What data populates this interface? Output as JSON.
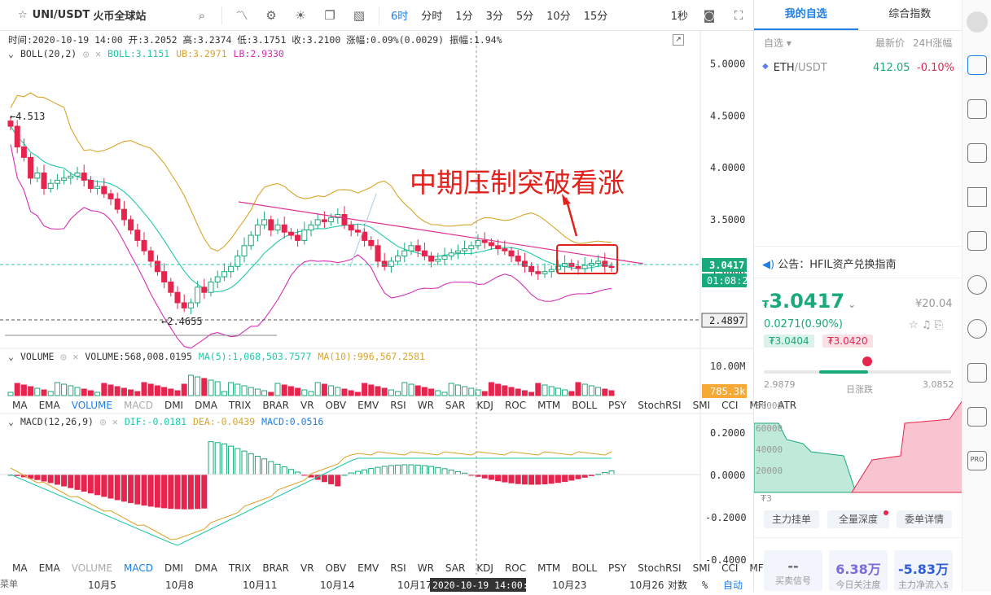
{
  "toolbar": {
    "symbol": "UNI/USDT",
    "exchange": "火币全球站",
    "intervals": [
      "6时",
      "分时",
      "1分",
      "3分",
      "5分",
      "10分",
      "15分"
    ],
    "active_interval": "6时",
    "refresh": "1秒"
  },
  "ohlc_line": "时间:2020-10-19 14:00  开:3.2052  高:3.2374  低:3.1751  收:3.2100  涨幅:0.09%(0.0029)  振幅:1.94%",
  "boll": {
    "name": "BOLL(20,2)",
    "mid": "BOLL:3.1151",
    "ub": "UB:3.2971",
    "lb": "LB:2.9330",
    "colors": {
      "mid": "#1fc9a9",
      "ub": "#d9a429",
      "lb": "#d42fb5"
    }
  },
  "price_axis": [
    "5.0000",
    "4.5000",
    "4.0000",
    "3.5000",
    "3.0000"
  ],
  "price_tags": {
    "current": "3.0417",
    "countdown": "01:08:28",
    "low_line": "2.4897"
  },
  "marks": {
    "high": "4.513",
    "low": "2.4655"
  },
  "annotation": "中期压制突破看涨",
  "volume": {
    "name": "VOLUME",
    "value": "VOLUME:568,008.0195",
    "ma5": "MA(5):1,068,503.7577",
    "ma10": "MA(10):996,567.2581",
    "axis": "10.00M",
    "tag": "785.3k"
  },
  "indicators": [
    "MA",
    "EMA",
    "VOLUME",
    "MACD",
    "DMI",
    "DMA",
    "TRIX",
    "BRAR",
    "VR",
    "OBV",
    "EMV",
    "RSI",
    "WR",
    "SAR",
    "KDJ",
    "ROC",
    "MTM",
    "BOLL",
    "PSY",
    "StochRSI",
    "SMI",
    "CCI",
    "MFI",
    "ATR"
  ],
  "macd": {
    "name": "MACD(12,26,9)",
    "dif": "DIF:-0.0181",
    "dea": "DEA:-0.0439",
    "macd": "MACD:0.0516",
    "axis": [
      "0.2000",
      "0.0000",
      "-0.2000",
      "-0.4000"
    ]
  },
  "time_axis": [
    "10月5",
    "10月8",
    "10月11",
    "10月14",
    "10月17",
    "10月20",
    "10月23",
    "10月26"
  ],
  "crosshair_time": "2020-10-19 14:00:00",
  "bottom_controls": {
    "pct": "%",
    "log": "对数",
    "auto": "自动",
    "left_label": "菜单"
  },
  "right": {
    "tabs": [
      "我的自选",
      "综合指数"
    ],
    "list_head": {
      "col1": "自选",
      "col2": "最新价",
      "col3": "24H涨幅"
    },
    "watch": [
      {
        "sym": "ETH",
        "quote": "/USDT",
        "price": "412.05",
        "change": "-0.10%"
      }
    ],
    "notice": "公告：HFIL资产兑换指南",
    "price": "3.0417",
    "cny": "¥20.04",
    "change": "0.0271(0.90%)",
    "bid": "3.0404",
    "ask": "3.0420",
    "range_low": "2.9879",
    "range_label": "日涨跌",
    "range_high": "3.0852",
    "depth_axis": [
      "80000",
      "60000",
      "40000",
      "20000"
    ],
    "depth_bottom": "3",
    "buttons": [
      "主力挂单",
      "全量深度",
      "委单详情"
    ],
    "stats": [
      {
        "value": "--",
        "label": "买卖信号"
      },
      {
        "value": "6.38万",
        "label": "今日关注度"
      },
      {
        "value": "-5.83万",
        "label": "主力净流入$"
      }
    ]
  },
  "chart_data": {
    "type": "candlestick",
    "title": "UNI/USDT 6时",
    "price_range": [
      2.3,
      5.2
    ],
    "boll_last": {
      "mid": 3.1151,
      "ub": 3.2971,
      "lb": 2.933
    },
    "volume_last": 568008.0195,
    "macd_last": {
      "dif": -0.0181,
      "dea": -0.0439,
      "macd": 0.0516
    },
    "high_mark": 4.513,
    "low_mark": 2.4655,
    "closes": [
      4.4,
      4.2,
      4.1,
      3.9,
      3.95,
      3.8,
      3.85,
      3.88,
      3.9,
      3.92,
      3.95,
      3.88,
      3.8,
      3.82,
      3.75,
      3.7,
      3.6,
      3.5,
      3.4,
      3.3,
      3.2,
      3.1,
      3.0,
      2.9,
      2.8,
      2.7,
      2.65,
      2.7,
      2.85,
      2.8,
      2.9,
      2.95,
      3.0,
      3.05,
      3.15,
      3.25,
      3.35,
      3.45,
      3.5,
      3.4,
      3.45,
      3.38,
      3.35,
      3.3,
      3.4,
      3.45,
      3.5,
      3.48,
      3.52,
      3.55,
      3.45,
      3.4,
      3.38,
      3.3,
      3.25,
      3.1,
      3.05,
      3.1,
      3.15,
      3.2,
      3.25,
      3.2,
      3.15,
      3.1,
      3.12,
      3.15,
      3.18,
      3.2,
      3.22,
      3.25,
      3.3,
      3.28,
      3.25,
      3.22,
      3.2,
      3.15,
      3.1,
      3.05,
      3.0,
      2.98,
      3.0,
      3.02,
      3.05,
      3.08,
      3.05,
      3.03,
      3.06,
      3.08,
      3.1,
      3.05,
      3.04
    ]
  }
}
